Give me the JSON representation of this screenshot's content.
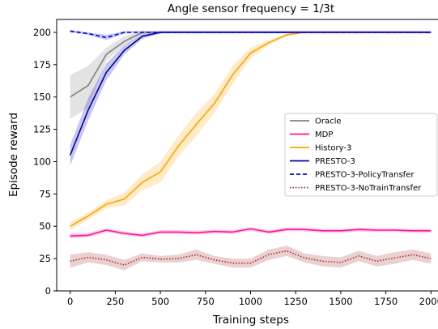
{
  "chart_data": {
    "type": "line",
    "title": "Angle sensor frequency = 1/3t",
    "xlabel": "Training steps",
    "ylabel": "Episode reward",
    "xlim": [
      -75,
      2075
    ],
    "ylim": [
      0,
      210
    ],
    "xticks": [
      0,
      250,
      500,
      750,
      1000,
      1250,
      1500,
      1750,
      2000
    ],
    "yticks": [
      0,
      25,
      50,
      75,
      100,
      125,
      150,
      175,
      200
    ],
    "grid": false,
    "legend_position": "center-right",
    "series": [
      {
        "name": "Oracle",
        "color": "#808080",
        "dash": "solid",
        "x": [
          0,
          100,
          200,
          300,
          400,
          500,
          600,
          700,
          800,
          900,
          1000,
          1100,
          1200,
          1300,
          1400,
          1500,
          1600,
          1700,
          1800,
          1900,
          2000
        ],
        "y": [
          150,
          159,
          183,
          193,
          200,
          200,
          200,
          200,
          200,
          200,
          200,
          200,
          200,
          200,
          200,
          200,
          200,
          200,
          200,
          200,
          200
        ],
        "lower": [
          133,
          142,
          178,
          190,
          199,
          200,
          200,
          200,
          200,
          200,
          200,
          200,
          200,
          200,
          200,
          200,
          200,
          200,
          200,
          200,
          200
        ],
        "upper": [
          167,
          174,
          188,
          197,
          201,
          201,
          201,
          201,
          201,
          201,
          201,
          201,
          201,
          201,
          201,
          201,
          201,
          201,
          201,
          201,
          201
        ]
      },
      {
        "name": "MDP",
        "color": "#ff1493",
        "dash": "solid",
        "x": [
          0,
          100,
          200,
          300,
          400,
          500,
          600,
          700,
          800,
          900,
          1000,
          1100,
          1200,
          1300,
          1400,
          1500,
          1600,
          1700,
          1800,
          1900,
          2000
        ],
        "y": [
          42.5,
          43,
          47,
          44.5,
          43,
          45.5,
          45.5,
          45,
          46,
          45.5,
          48,
          45.5,
          47.5,
          47.5,
          46.5,
          46.5,
          47.5,
          47,
          47,
          46.5,
          46.5
        ],
        "lower": [
          40.5,
          41.5,
          45.5,
          43,
          41.5,
          44,
          44,
          43.5,
          44.5,
          44,
          46.5,
          44,
          46,
          46,
          45,
          45,
          46,
          45.5,
          45.5,
          45,
          45
        ],
        "upper": [
          44.5,
          45,
          48.5,
          46,
          44.5,
          47,
          47,
          46.5,
          47.5,
          47,
          49.5,
          47,
          49,
          49,
          48,
          48,
          49,
          48.5,
          48.5,
          48,
          48
        ]
      },
      {
        "name": "History-3",
        "color": "#ffa500",
        "dash": "solid",
        "x": [
          0,
          100,
          200,
          300,
          400,
          500,
          600,
          700,
          800,
          900,
          1000,
          1100,
          1200,
          1300,
          1400,
          1500,
          1600,
          1700,
          1800,
          1900,
          2000
        ],
        "y": [
          50,
          58,
          67,
          71,
          84,
          92,
          112,
          129,
          145,
          167,
          184,
          192,
          198,
          200,
          200,
          200,
          200,
          200,
          200,
          200,
          200
        ],
        "lower": [
          47,
          55,
          64,
          66,
          78,
          84,
          104,
          120,
          138,
          160,
          180,
          190,
          197,
          200,
          200,
          200,
          200,
          200,
          200,
          200,
          200
        ],
        "upper": [
          53,
          61,
          70,
          76,
          90,
          100,
          120,
          138,
          152,
          174,
          188,
          194,
          199,
          200,
          200,
          200,
          200,
          200,
          200,
          200,
          200
        ]
      },
      {
        "name": "PRESTO-3",
        "color": "#0000aa",
        "dash": "solid",
        "x": [
          0,
          100,
          200,
          300,
          400,
          500,
          600,
          700,
          800,
          900,
          1000,
          1100,
          1200,
          1300,
          1400,
          1500,
          1600,
          1700,
          1800,
          1900,
          2000
        ],
        "y": [
          105,
          140,
          169,
          186,
          197,
          200,
          200,
          200,
          200,
          200,
          200,
          200,
          200,
          200,
          200,
          200,
          200,
          200,
          200,
          200,
          200
        ],
        "lower": [
          97,
          132,
          163,
          183,
          195,
          199,
          200,
          200,
          200,
          200,
          200,
          200,
          200,
          200,
          200,
          200,
          200,
          200,
          200,
          200,
          200
        ],
        "upper": [
          113,
          149,
          176,
          190,
          199,
          201,
          201,
          201,
          201,
          201,
          201,
          201,
          201,
          201,
          201,
          201,
          201,
          201,
          201,
          201,
          201
        ]
      },
      {
        "name": "PRESTO-3-PolicyTransfer",
        "color": "#0000dd",
        "dash": "dashed",
        "x": [
          0,
          100,
          200,
          300,
          400,
          500,
          600,
          700,
          800,
          900,
          1000,
          1100,
          1200,
          1300,
          1400,
          1500,
          1600,
          1700,
          1800,
          1900,
          2000
        ],
        "y": [
          201,
          199,
          196,
          200,
          200,
          200,
          200,
          200,
          200,
          200,
          200,
          200,
          200,
          200,
          200,
          200,
          200,
          200,
          200,
          200,
          200
        ],
        "lower": [
          200,
          198,
          194,
          199,
          200,
          200,
          200,
          200,
          200,
          200,
          200,
          200,
          200,
          200,
          200,
          200,
          200,
          200,
          200,
          200,
          200
        ],
        "upper": [
          202,
          200,
          198,
          201,
          201,
          201,
          201,
          201,
          201,
          201,
          201,
          201,
          201,
          201,
          201,
          201,
          201,
          201,
          201,
          201,
          201
        ]
      },
      {
        "name": "PRESTO-3-NoTrainTransfer",
        "color": "#a52a2a",
        "dash": "dotted",
        "x": [
          0,
          100,
          200,
          300,
          400,
          500,
          600,
          700,
          800,
          900,
          1000,
          1100,
          1200,
          1300,
          1400,
          1500,
          1600,
          1700,
          1800,
          1900,
          2000
        ],
        "y": [
          23,
          26,
          24,
          20,
          26,
          24.5,
          25,
          28,
          24,
          21.5,
          21.5,
          28,
          31,
          25.5,
          23,
          22,
          27,
          23,
          25.5,
          28,
          25
        ],
        "lower": [
          18,
          22,
          20,
          16,
          23,
          22,
          22,
          24,
          21,
          18,
          18,
          24,
          27,
          22,
          19,
          18,
          23,
          19,
          21,
          24,
          21
        ],
        "upper": [
          28,
          30,
          28,
          24,
          29,
          27,
          28,
          32,
          27,
          25,
          25,
          32,
          35,
          29,
          27,
          26,
          31,
          27,
          30,
          32,
          29
        ]
      }
    ]
  }
}
